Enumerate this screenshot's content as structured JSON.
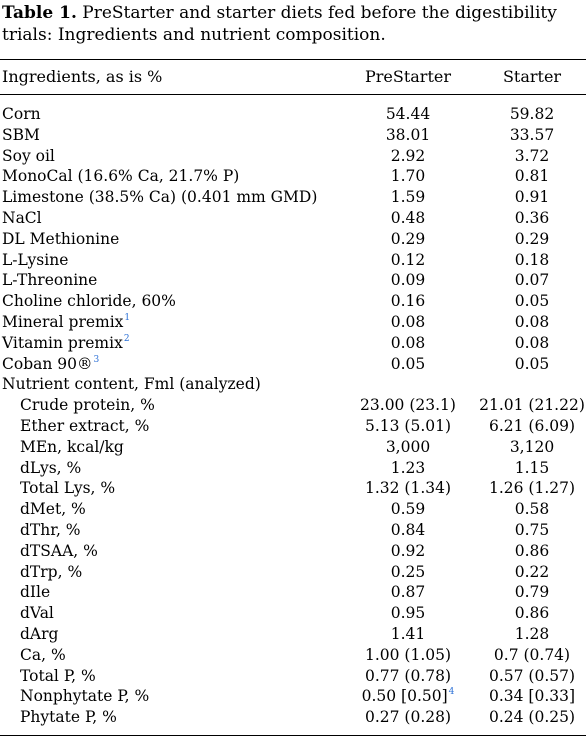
{
  "caption": {
    "label": "Table 1.",
    "text": "PreStarter and starter diets fed before the digestibility trials: Ingredients and nutrient composition."
  },
  "header": {
    "col1": "Ingredients, as is %",
    "col2": "PreStarter",
    "col3": "Starter"
  },
  "rows": [
    {
      "name": "Corn",
      "prestarter": "54.44",
      "starter": "59.82"
    },
    {
      "name": "SBM",
      "prestarter": "38.01",
      "starter": "33.57"
    },
    {
      "name": "Soy oil",
      "prestarter": "2.92",
      "starter": "3.72"
    },
    {
      "name": "MonoCal (16.6% Ca, 21.7% P)",
      "prestarter": "1.70",
      "starter": "0.81"
    },
    {
      "name": "Limestone (38.5% Ca) (0.401 mm GMD)",
      "prestarter": "1.59",
      "starter": "0.91"
    },
    {
      "name": "NaCl",
      "prestarter": "0.48",
      "starter": "0.36"
    },
    {
      "name": "DL Methionine",
      "prestarter": "0.29",
      "starter": "0.29"
    },
    {
      "name": "L-Lysine",
      "prestarter": "0.12",
      "starter": "0.18"
    },
    {
      "name": "L-Threonine",
      "prestarter": "0.09",
      "starter": "0.07"
    },
    {
      "name": "Choline chloride, 60%",
      "prestarter": "0.16",
      "starter": "0.05"
    },
    {
      "name": "Mineral premix",
      "note": "1",
      "prestarter": "0.08",
      "starter": "0.08"
    },
    {
      "name": "Vitamin premix",
      "note": "2",
      "prestarter": "0.08",
      "starter": "0.08"
    },
    {
      "name": "Coban 90®",
      "note": "3",
      "prestarter": "0.05",
      "starter": "0.05"
    },
    {
      "name": "Nutrient content, Fml (analyzed)",
      "prestarter": "",
      "starter": "",
      "section": true
    },
    {
      "name": "Crude protein, %",
      "prestarter": "23.00 (23.1)",
      "starter": "21.01 (21.22)",
      "indent": true
    },
    {
      "name": "Ether extract, %",
      "prestarter": "5.13 (5.01)",
      "starter": "6.21 (6.09)",
      "indent": true
    },
    {
      "name": "MEn, kcal/kg",
      "prestarter": "3,000",
      "starter": "3,120",
      "indent": true
    },
    {
      "name": "dLys, %",
      "prestarter": "1.23",
      "starter": "1.15",
      "indent": true
    },
    {
      "name": "Total Lys, %",
      "prestarter": "1.32 (1.34)",
      "starter": "1.26 (1.27)",
      "indent": true
    },
    {
      "name": "dMet, %",
      "prestarter": "0.59",
      "starter": "0.58",
      "indent": true
    },
    {
      "name": "dThr, %",
      "prestarter": "0.84",
      "starter": "0.75",
      "indent": true
    },
    {
      "name": "dTSAA, %",
      "prestarter": "0.92",
      "starter": "0.86",
      "indent": true
    },
    {
      "name": "dTrp, %",
      "prestarter": "0.25",
      "starter": "0.22",
      "indent": true
    },
    {
      "name": "dIle",
      "prestarter": "0.87",
      "starter": "0.79",
      "indent": true
    },
    {
      "name": "dVal",
      "prestarter": "0.95",
      "starter": "0.86",
      "indent": true
    },
    {
      "name": "dArg",
      "prestarter": "1.41",
      "starter": "1.28",
      "indent": true
    },
    {
      "name": "Ca, %",
      "prestarter": "1.00 (1.05)",
      "starter": "0.7  (0.74)",
      "indent": true
    },
    {
      "name": "Total P, %",
      "prestarter": "0.77 (0.78)",
      "starter": "0.57 (0.57)",
      "indent": true
    },
    {
      "name": "Nonphytate P, %",
      "prestarter": "0.50 [0.50]",
      "prestarter_note": "4",
      "starter": "0.34 [0.33]",
      "indent": true
    },
    {
      "name": "Phytate P, %",
      "prestarter": "0.27 (0.28)",
      "starter": "0.24 (0.25)",
      "indent": true
    }
  ]
}
